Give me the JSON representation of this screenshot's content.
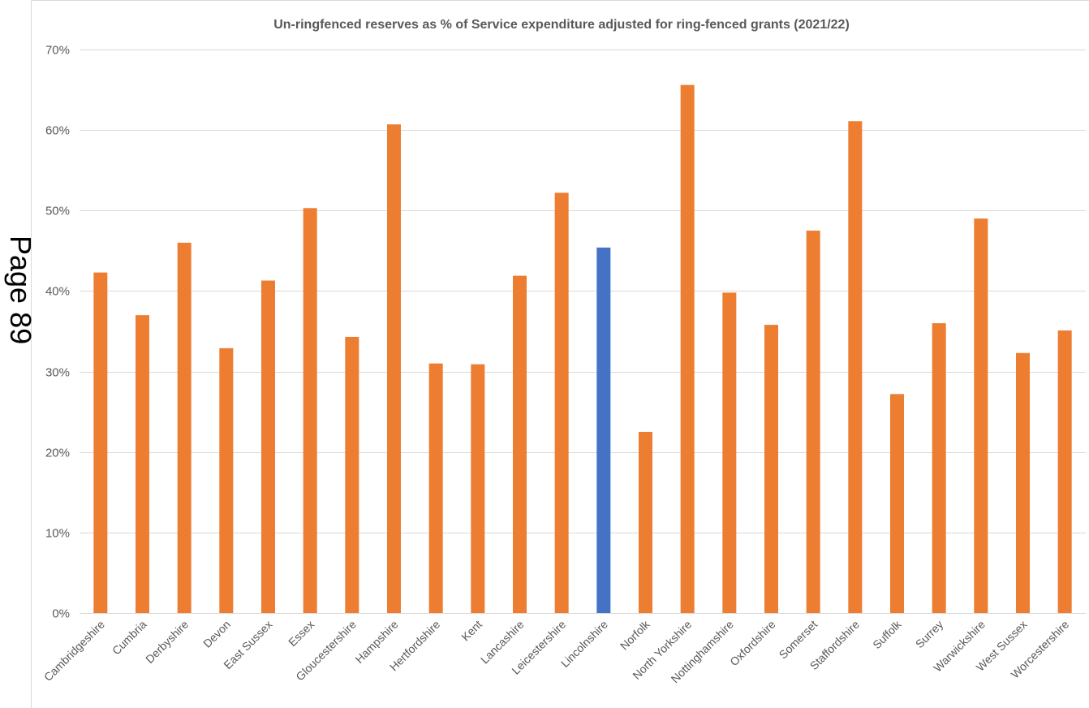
{
  "page_label": "Page 89",
  "chart_data": {
    "type": "bar",
    "title": "Un-ringfenced  reserves  as  %  of  Service  expenditure  adjusted  for  ring-fenced  grants  (2021/22)",
    "xlabel": "",
    "ylabel": "",
    "ylim": [
      0,
      70
    ],
    "yticks": [
      "0%",
      "10%",
      "20%",
      "30%",
      "40%",
      "50%",
      "60%",
      "70%"
    ],
    "grid": true,
    "categories": [
      "Cambridgeshire",
      "Cumbria",
      "Derbyshire",
      "Devon",
      "East Sussex",
      "Essex",
      "Gloucestershire",
      "Hampshire",
      "Hertfordshire",
      "Kent",
      "Lancashire",
      "Leicestershire",
      "Lincolnshire",
      "Norfolk",
      "North Yorkshire",
      "Nottinghamshire",
      "Oxfordshire",
      "Somerset",
      "Staffordshire",
      "Suffolk",
      "Surrey",
      "Warwickshire",
      "West Sussex",
      "Worcestershire"
    ],
    "values": [
      42.3,
      37.0,
      46.0,
      32.9,
      41.3,
      50.3,
      34.3,
      60.7,
      31.0,
      30.9,
      41.9,
      52.2,
      45.4,
      22.5,
      65.6,
      39.8,
      35.8,
      47.5,
      61.1,
      27.2,
      36.0,
      49.0,
      32.3,
      35.1
    ],
    "highlight_category": "Lincolnshire",
    "colors": {
      "default": "#ED7D31",
      "highlight": "#4472C4",
      "grid": "#D9D9D9",
      "text": "#595959"
    }
  }
}
